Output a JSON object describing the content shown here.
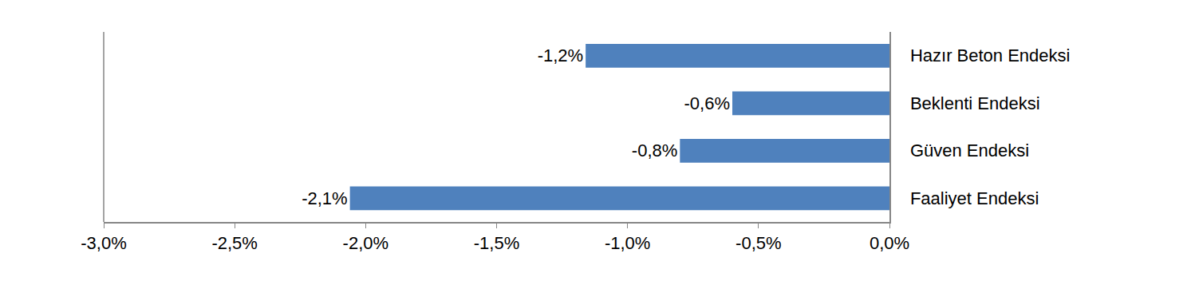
{
  "chart_data": {
    "type": "bar",
    "orientation": "horizontal",
    "categories": [
      "Hazır Beton Endeksi",
      "Beklenti Endeksi",
      "Güven Endeksi",
      "Faaliyet Endeksi"
    ],
    "values": [
      -1.16,
      -0.6,
      -0.8,
      -2.06
    ],
    "value_labels": [
      "-1,2%",
      "-0,6%",
      "-0,8%",
      "-2,1%"
    ],
    "data_labels": true,
    "color": "#4f81bd",
    "grid": false,
    "xlim": [
      -3.0,
      0.0
    ],
    "xticks": [
      {
        "value": -3.0,
        "label": "-3,0%"
      },
      {
        "value": -2.5,
        "label": "-2,5%"
      },
      {
        "value": -2.0,
        "label": "-2,0%"
      },
      {
        "value": -1.5,
        "label": "-1,5%"
      },
      {
        "value": -1.0,
        "label": "-1,0%"
      },
      {
        "value": -0.5,
        "label": "-0,5%"
      },
      {
        "value": 0.0,
        "label": "0,0%"
      }
    ]
  }
}
